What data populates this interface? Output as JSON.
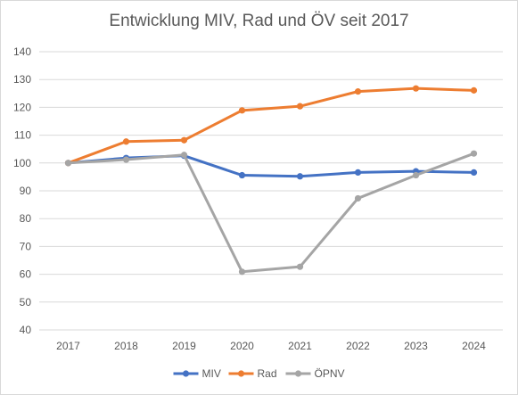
{
  "chart_data": {
    "type": "line",
    "title": "Entwicklung MIV, Rad und ÖV seit 2017",
    "xlabel": "",
    "ylabel": "",
    "categories": [
      "2017",
      "2018",
      "2019",
      "2020",
      "2021",
      "2022",
      "2023",
      "2024"
    ],
    "ylim": [
      40,
      140
    ],
    "yticks": [
      40,
      50,
      60,
      70,
      80,
      90,
      100,
      110,
      120,
      130,
      140
    ],
    "grid": true,
    "legend_position": "bottom",
    "series": [
      {
        "name": "MIV",
        "color": "#4472c4",
        "values": [
          100,
          101.8,
          102.6,
          95.6,
          95.2,
          96.6,
          97.0,
          96.6
        ]
      },
      {
        "name": "Rad",
        "color": "#ed7d31",
        "values": [
          100,
          107.7,
          108.2,
          118.9,
          120.4,
          125.7,
          126.8,
          126.1
        ]
      },
      {
        "name": "ÖPNV",
        "color": "#a5a5a5",
        "values": [
          100,
          101.2,
          102.9,
          60.9,
          62.7,
          87.3,
          95.6,
          103.4
        ]
      }
    ]
  }
}
